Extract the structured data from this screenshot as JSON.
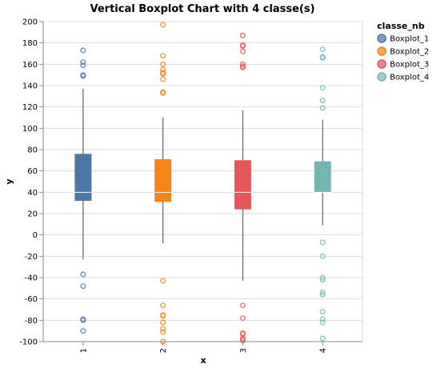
{
  "chart_data": {
    "type": "boxplot",
    "title": "Vertical Boxplot Chart with 4 classe(s)",
    "xlabel": "x",
    "ylabel": "y",
    "ylim": [
      -100,
      200
    ],
    "yticks": [
      -100,
      -80,
      -60,
      -40,
      -20,
      0,
      20,
      40,
      60,
      80,
      100,
      120,
      140,
      160,
      180,
      200
    ],
    "categories": [
      "1",
      "2",
      "3",
      "4"
    ],
    "grid": true,
    "legend": {
      "title": "classe_nb",
      "placement": "right"
    },
    "series": [
      {
        "name": "Boxplot_1",
        "category": "1",
        "color": "#4c78a8",
        "whisker_low": -23,
        "q1": 32,
        "median": 40,
        "q3": 76,
        "whisker_high": 137,
        "outliers": [
          173,
          162,
          159,
          150,
          149,
          -37,
          -48,
          -79,
          -80,
          -90
        ]
      },
      {
        "name": "Boxplot_2",
        "category": "2",
        "color": "#f58518",
        "whisker_low": -8,
        "q1": 31,
        "median": 40,
        "q3": 71,
        "whisker_high": 110,
        "outliers": [
          197,
          168,
          160,
          155,
          152,
          151,
          146,
          134,
          133,
          -43,
          -66,
          -75,
          -76,
          -82,
          -88,
          -91,
          -100
        ]
      },
      {
        "name": "Boxplot_3",
        "category": "3",
        "color": "#e45756",
        "whisker_low": -43,
        "q1": 24,
        "median": 40,
        "q3": 70,
        "whisker_high": 117,
        "outliers": [
          187,
          178,
          177,
          172,
          160,
          158,
          157,
          -66,
          -78,
          -92,
          -93,
          -97,
          -98,
          -99
        ]
      },
      {
        "name": "Boxplot_4",
        "category": "4",
        "color": "#72b7b2",
        "whisker_low": 9,
        "q1": 40,
        "median": 40,
        "q3": 69,
        "whisker_high": 108,
        "outliers": [
          174,
          167,
          166,
          138,
          126,
          119,
          -7,
          -20,
          -40,
          -42,
          -54,
          -56,
          -72,
          -79,
          -82,
          -97
        ]
      }
    ]
  }
}
